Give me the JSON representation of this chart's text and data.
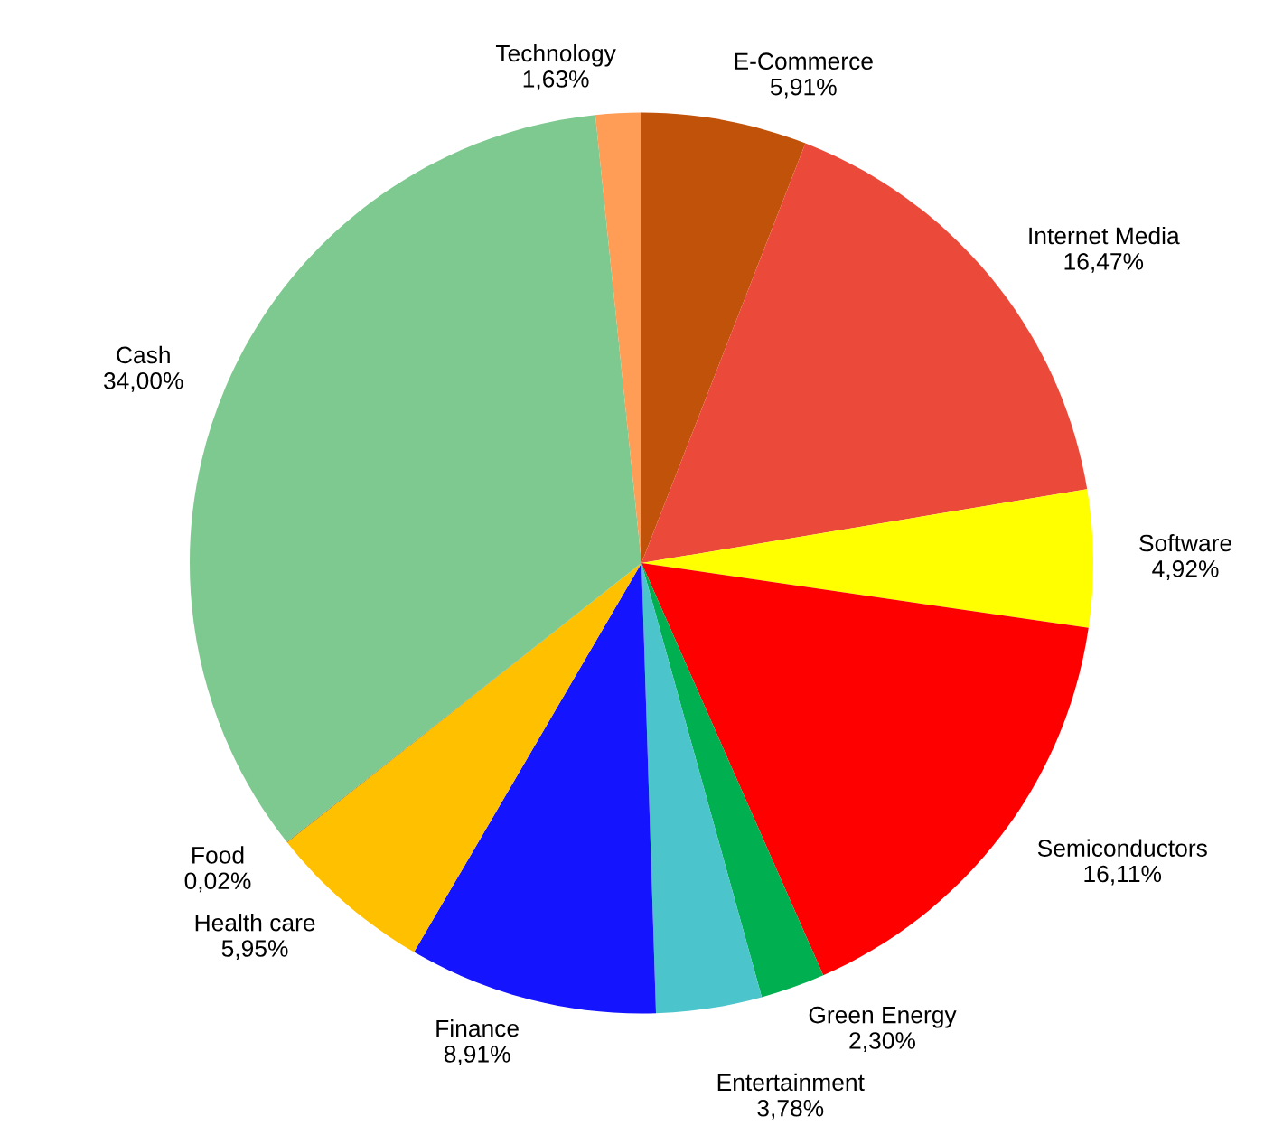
{
  "chart_data": {
    "type": "pie",
    "categories": [
      "E-Commerce",
      "Internet Media",
      "Software",
      "Semiconductors",
      "Green Energy",
      "Entertainment",
      "Finance",
      "Health care",
      "Food",
      "Cash",
      "Technology"
    ],
    "values": [
      5.91,
      16.47,
      4.92,
      16.11,
      2.3,
      3.78,
      8.91,
      5.95,
      0.02,
      34.0,
      1.63
    ],
    "value_labels": [
      "5,91%",
      "16,47%",
      "4,92%",
      "16,11%",
      "2,30%",
      "3,78%",
      "8,91%",
      "5,95%",
      "0,02%",
      "34,00%",
      "1,63%"
    ],
    "colors": [
      "#c0520a",
      "#eb4a3a",
      "#ffff00",
      "#ff0000",
      "#00b050",
      "#4bc4cc",
      "#1414ff",
      "#ffc000",
      "#8b6914",
      "#7ec98f",
      "#ff9c55"
    ],
    "legend": false
  }
}
